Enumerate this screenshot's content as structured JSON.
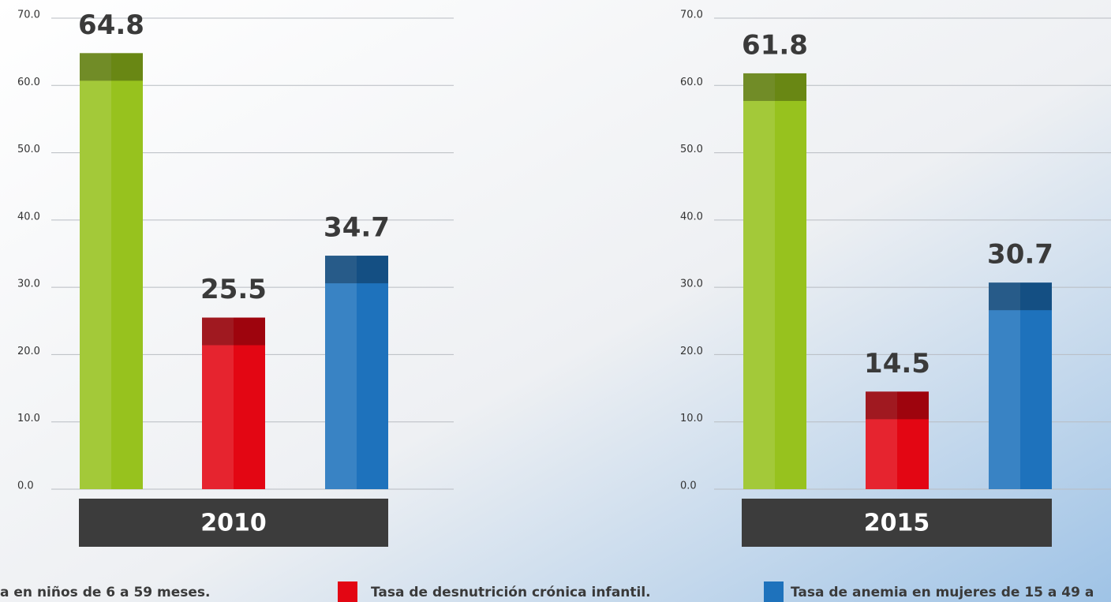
{
  "chart_data": [
    {
      "type": "bar",
      "x_label": "2010",
      "categories": [
        null,
        null,
        null
      ],
      "values": [
        64.8,
        25.5,
        34.7
      ],
      "colors": [
        "#97c21e",
        "#e30613",
        "#1e72bc"
      ],
      "ylim": [
        0,
        70
      ],
      "yticks": [
        {
          "value": 0,
          "label": "0.0"
        },
        {
          "value": 10,
          "label": "10.0"
        },
        {
          "value": 20,
          "label": "20.0"
        },
        {
          "value": 30,
          "label": "30.0"
        },
        {
          "value": 40,
          "label": "40.0"
        },
        {
          "value": 50,
          "label": "50.0"
        },
        {
          "value": 60,
          "label": "60.0"
        },
        {
          "value": 70,
          "label": "70.0"
        }
      ],
      "grid": true
    },
    {
      "type": "bar",
      "x_label": "2015",
      "categories": [
        null,
        null,
        null
      ],
      "values": [
        61.8,
        14.5,
        30.7
      ],
      "colors": [
        "#97c21e",
        "#e30613",
        "#1e72bc"
      ],
      "ylim": [
        0,
        70
      ],
      "yticks": [
        {
          "value": 0,
          "label": "0.0"
        },
        {
          "value": 10,
          "label": "10.0"
        },
        {
          "value": 20,
          "label": "20.0"
        },
        {
          "value": 30,
          "label": "30.0"
        },
        {
          "value": 40,
          "label": "40.0"
        },
        {
          "value": 50,
          "label": "50.0"
        },
        {
          "value": 60,
          "label": "60.0"
        },
        {
          "value": 70,
          "label": "70.0"
        }
      ],
      "grid": true
    }
  ],
  "legend": [
    {
      "label": "a en niños de 6 a 59 meses.",
      "color": null
    },
    {
      "label": "Tasa de desnutrición crónica infantil.",
      "color": "#e30613"
    },
    {
      "label": "Tasa de anemia en mujeres de 15 a 49 a",
      "color": "#1e72bc"
    }
  ]
}
